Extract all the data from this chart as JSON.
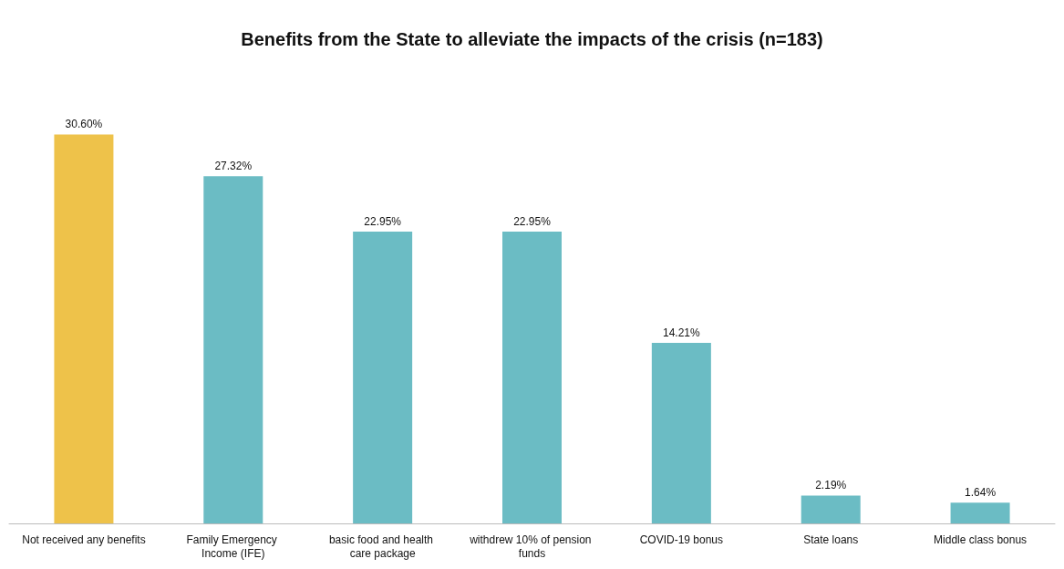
{
  "chart_data": {
    "type": "bar",
    "title": "Benefits from the State to alleviate the impacts of the crisis (n=183)",
    "categories": [
      "Not received any benefits",
      "Family Emergency Income (IFE)",
      "basic food and health care package",
      "withdrew 10% of pension funds",
      "COVID-19 bonus",
      "State loans",
      "Middle class bonus"
    ],
    "values": [
      30.6,
      27.32,
      22.95,
      22.95,
      14.21,
      2.19,
      1.64
    ],
    "value_labels": [
      "30.60%",
      "27.32%",
      "22.95%",
      "22.95%",
      "14.21%",
      "2.19%",
      "1.64%"
    ],
    "colors": [
      "#eec24a",
      "#6bbcc4",
      "#6bbcc4",
      "#6bbcc4",
      "#6bbcc4",
      "#6bbcc4",
      "#6bbcc4"
    ],
    "orientation": "vertical"
  }
}
